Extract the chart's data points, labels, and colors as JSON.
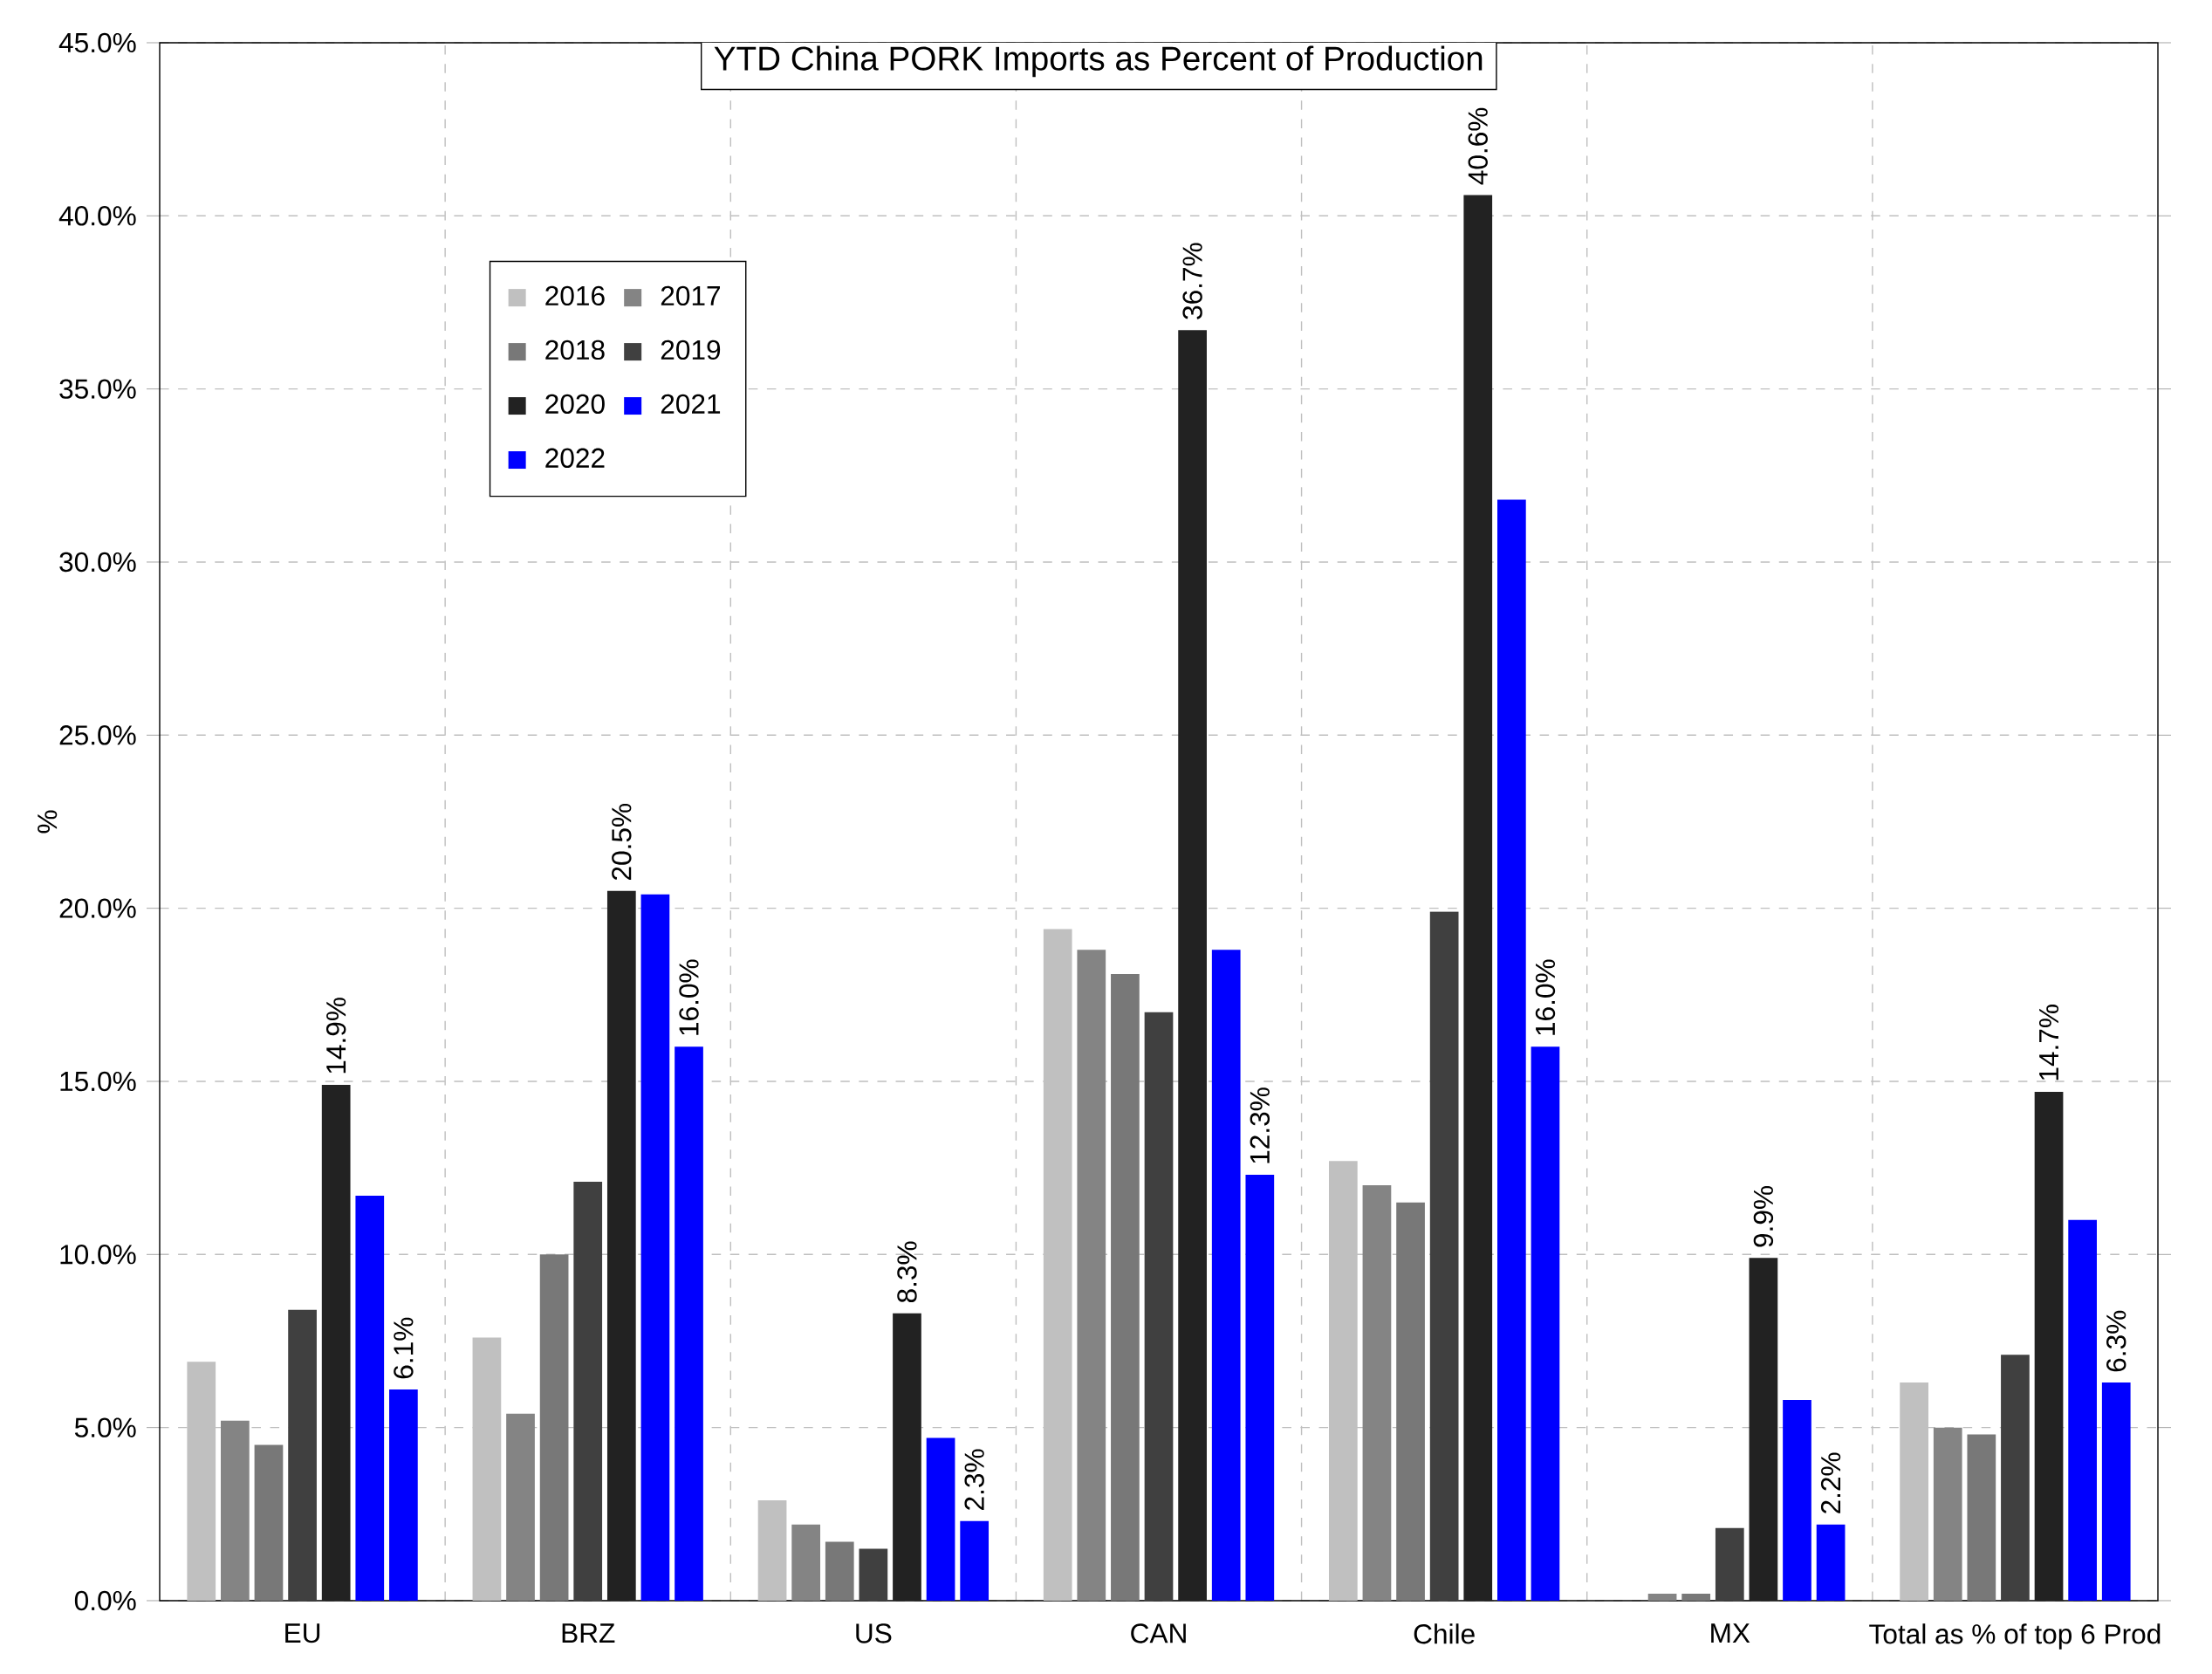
{
  "chart_data": {
    "type": "bar",
    "title": "YTD China PORK Imports as Percent of Production",
    "ylabel": "%",
    "categories": [
      "EU",
      "BRZ",
      "US",
      "CAN",
      "Chile",
      "MX",
      "Total as % of top 6 Prod"
    ],
    "series": [
      {
        "name": "2016",
        "color": "#c0c0c0",
        "values": [
          6.9,
          7.6,
          2.9,
          19.4,
          12.7,
          0,
          6.3
        ]
      },
      {
        "name": "2017",
        "color": "#848484",
        "values": [
          5.2,
          5.4,
          2.2,
          18.8,
          12.0,
          0.2,
          5.0
        ]
      },
      {
        "name": "2018",
        "color": "#787878",
        "values": [
          4.5,
          10.0,
          1.7,
          18.1,
          11.5,
          0.2,
          4.8
        ]
      },
      {
        "name": "2019",
        "color": "#404040",
        "values": [
          8.4,
          12.1,
          1.5,
          17.0,
          19.9,
          2.1,
          7.1
        ]
      },
      {
        "name": "2020",
        "color": "#222222",
        "values": [
          14.9,
          20.5,
          8.3,
          36.7,
          40.6,
          9.9,
          14.7
        ],
        "value_labels": [
          "14.9%",
          "20.5%",
          "8.3%",
          "36.7%",
          "40.6%",
          "9.9%",
          "14.7%"
        ]
      },
      {
        "name": "2021",
        "color": "#0000ff",
        "values": [
          11.7,
          20.4,
          4.7,
          18.8,
          31.8,
          5.8,
          11.0
        ]
      },
      {
        "name": "2022",
        "color": "#0000ff",
        "values": [
          6.1,
          16.0,
          2.3,
          12.3,
          16.0,
          2.2,
          6.3
        ],
        "value_labels": [
          "6.1%",
          "16.0%",
          "2.3%",
          "12.3%",
          "16.0%",
          "2.2%",
          "6.3%"
        ]
      }
    ],
    "ylim": [
      0,
      45
    ],
    "yticks": [
      {
        "value": 0,
        "label": "0.0%"
      },
      {
        "value": 5,
        "label": "5.0%"
      },
      {
        "value": 10,
        "label": "10.0%"
      },
      {
        "value": 15,
        "label": "15.0%"
      },
      {
        "value": 20,
        "label": "20.0%"
      },
      {
        "value": 25,
        "label": "25.0%"
      },
      {
        "value": 30,
        "label": "30.0%"
      },
      {
        "value": 35,
        "label": "35.0%"
      },
      {
        "value": 40,
        "label": "40.0%"
      },
      {
        "value": 45,
        "label": "45.0%"
      }
    ],
    "grid": true,
    "legend": "top left"
  }
}
